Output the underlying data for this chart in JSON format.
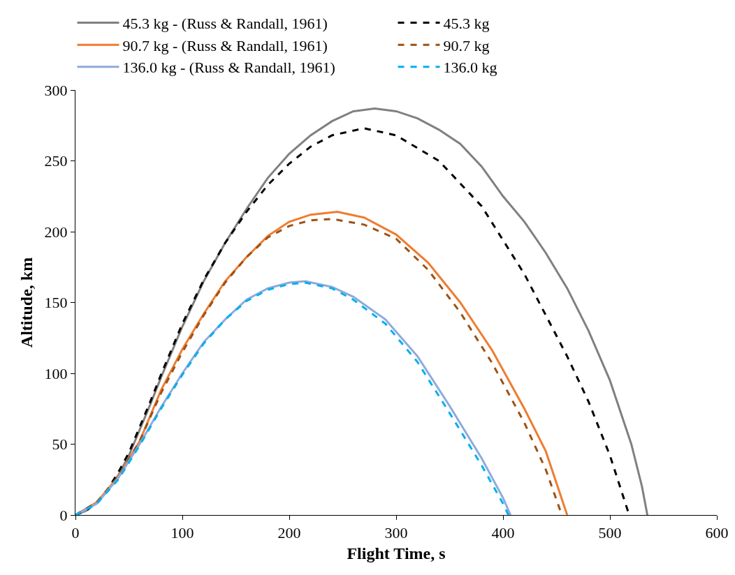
{
  "chart_data": {
    "type": "line",
    "xlabel": "Flight Time, s",
    "ylabel": "Altitude, km",
    "xlim": [
      0,
      600
    ],
    "xticks": [
      0,
      100,
      200,
      300,
      400,
      500,
      600
    ],
    "ylim": [
      0,
      300
    ],
    "yticks": [
      0,
      50,
      100,
      150,
      200,
      250,
      300
    ],
    "grid": false,
    "legend": "top",
    "marker": "none",
    "series": [
      {
        "name": "45.3 kg - (Russ & Randall, 1961)",
        "color": "#808080",
        "line_style": "solid",
        "x": [
          0,
          10,
          20,
          30,
          40,
          50,
          60,
          70,
          80,
          90,
          100,
          120,
          140,
          160,
          180,
          200,
          220,
          240,
          260,
          280,
          300,
          320,
          340,
          360,
          380,
          400,
          420,
          440,
          460,
          480,
          500,
          520,
          530,
          535
        ],
        "values": [
          0,
          3,
          9,
          17,
          28,
          42,
          60,
          78,
          97,
          115,
          133,
          165,
          192,
          216,
          238,
          255,
          268,
          278,
          285,
          287,
          285,
          280,
          272,
          262,
          246,
          225,
          207,
          185,
          160,
          130,
          95,
          50,
          20,
          0
        ]
      },
      {
        "name": "45.3 kg",
        "color": "#000000",
        "line_style": "dashed",
        "x": [
          0,
          10,
          20,
          30,
          40,
          50,
          60,
          70,
          80,
          90,
          100,
          120,
          140,
          160,
          180,
          200,
          220,
          240,
          270,
          300,
          340,
          380,
          420,
          460,
          480,
          500,
          518
        ],
        "values": [
          0,
          3,
          9,
          18,
          30,
          44,
          62,
          80,
          99,
          117,
          135,
          166,
          192,
          214,
          233,
          248,
          260,
          268,
          273,
          268,
          250,
          218,
          170,
          112,
          80,
          42,
          0
        ]
      },
      {
        "name": "90.7 kg - (Russ & Randall, 1961)",
        "color": "#ed7d31",
        "line_style": "solid",
        "x": [
          0,
          20,
          40,
          60,
          70,
          80,
          100,
          120,
          140,
          160,
          180,
          200,
          220,
          245,
          270,
          300,
          330,
          360,
          390,
          420,
          440,
          460
        ],
        "values": [
          0,
          9,
          27,
          52,
          70,
          88,
          117,
          142,
          165,
          182,
          197,
          207,
          212,
          214,
          210,
          198,
          178,
          150,
          116,
          75,
          45,
          0
        ]
      },
      {
        "name": "90.7 kg",
        "color": "#9c5215",
        "line_style": "dashed",
        "x": [
          0,
          20,
          40,
          60,
          80,
          100,
          120,
          140,
          160,
          180,
          200,
          220,
          240,
          270,
          300,
          330,
          360,
          390,
          420,
          440,
          455
        ],
        "values": [
          0,
          9,
          27,
          52,
          86,
          115,
          141,
          164,
          182,
          196,
          204,
          208,
          209,
          205,
          195,
          173,
          143,
          107,
          65,
          32,
          0
        ]
      },
      {
        "name": "136.0 kg - (Russ & Randall, 1961)",
        "color": "#8faadc",
        "line_style": "solid",
        "x": [
          0,
          20,
          40,
          60,
          80,
          100,
          120,
          140,
          160,
          180,
          200,
          215,
          240,
          260,
          290,
          320,
          350,
          380,
          400,
          407
        ],
        "values": [
          0,
          8,
          26,
          50,
          76,
          100,
          122,
          138,
          152,
          160,
          164,
          165,
          161,
          154,
          138,
          112,
          77,
          40,
          12,
          0
        ]
      },
      {
        "name": "136.0 kg",
        "color": "#00b0f0",
        "line_style": "dashed",
        "x": [
          0,
          20,
          40,
          60,
          80,
          100,
          120,
          140,
          160,
          180,
          200,
          215,
          240,
          260,
          290,
          320,
          350,
          380,
          400,
          405
        ],
        "values": [
          0,
          8,
          25,
          49,
          75,
          99,
          121,
          138,
          151,
          159,
          163,
          164,
          160,
          152,
          135,
          108,
          72,
          35,
          8,
          0
        ]
      }
    ]
  }
}
